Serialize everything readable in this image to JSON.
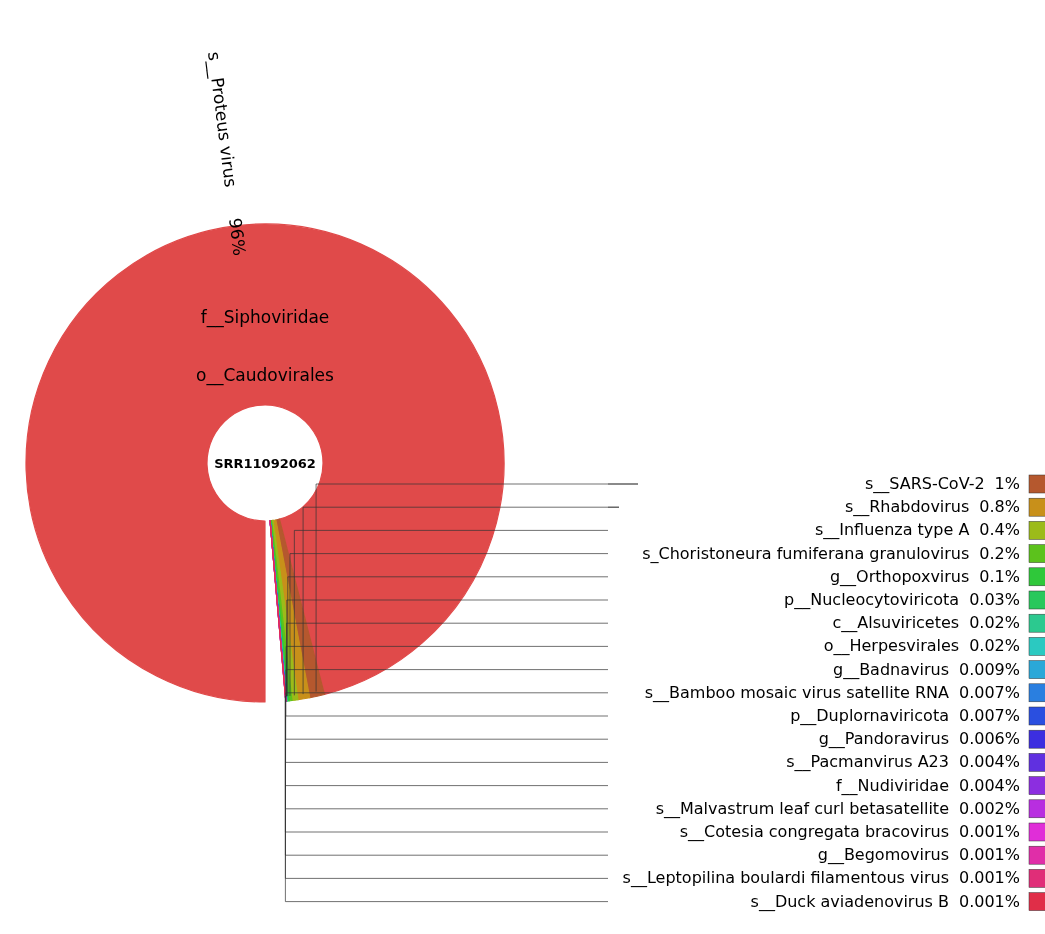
{
  "chart_data": {
    "type": "other",
    "title": "SRR11092062",
    "annotations": [
      "o__Caudovirales",
      "f__Siphoviridae"
    ],
    "categories": [
      "s__Proteus virus",
      "s__SARS-CoV-2",
      "s__Rhabdovirus",
      "s__Influenza type A",
      "s_Choristoneura fumiferana granulovirus",
      "g__Orthopoxvirus",
      "p__Nucleocytoviricota",
      "c__Alsuviricetes",
      "o__Herpesvirales",
      "g__Badnavirus",
      "s__Bamboo mosaic virus satellite RNA",
      "p__Duplornaviricota",
      "g__Pandoravirus",
      "s__Pacmanvirus A23",
      "f__Nudiviridae",
      "s__Malvastrum leaf curl betasatellite",
      "s__Cotesia congregata bracovirus",
      "g__Begomovirus",
      "s__Leptopilina boulardi filamentous virus",
      "s__Duck aviadenovirus B"
    ],
    "values": [
      96,
      1,
      0.8,
      0.4,
      0.2,
      0.1,
      0.03,
      0.02,
      0.02,
      0.009,
      0.007,
      0.007,
      0.006,
      0.004,
      0.004,
      0.002,
      0.001,
      0.001,
      0.001,
      0.001
    ],
    "value_labels": [
      "96%",
      "1%",
      "0.8%",
      "0.4%",
      "0.2%",
      "0.1%",
      "0.03%",
      "0.02%",
      "0.02%",
      "0.009%",
      "0.007%",
      "0.007%",
      "0.006%",
      "0.004%",
      "0.004%",
      "0.002%",
      "0.001%",
      "0.001%",
      "0.001%",
      "0.001%"
    ],
    "colors": [
      "#e04a4a",
      "#b5582e",
      "#c8901a",
      "#9cbb1a",
      "#5cc21c",
      "#2fc83a",
      "#28c85c",
      "#2cc98f",
      "#2bc9c1",
      "#2aa8d8",
      "#2a7fe0",
      "#2a4fe0",
      "#3c2ee0",
      "#6030e0",
      "#8c2ee0",
      "#b82ee0",
      "#e02ed8",
      "#e02ea8",
      "#e02e78",
      "#e02e48"
    ]
  }
}
